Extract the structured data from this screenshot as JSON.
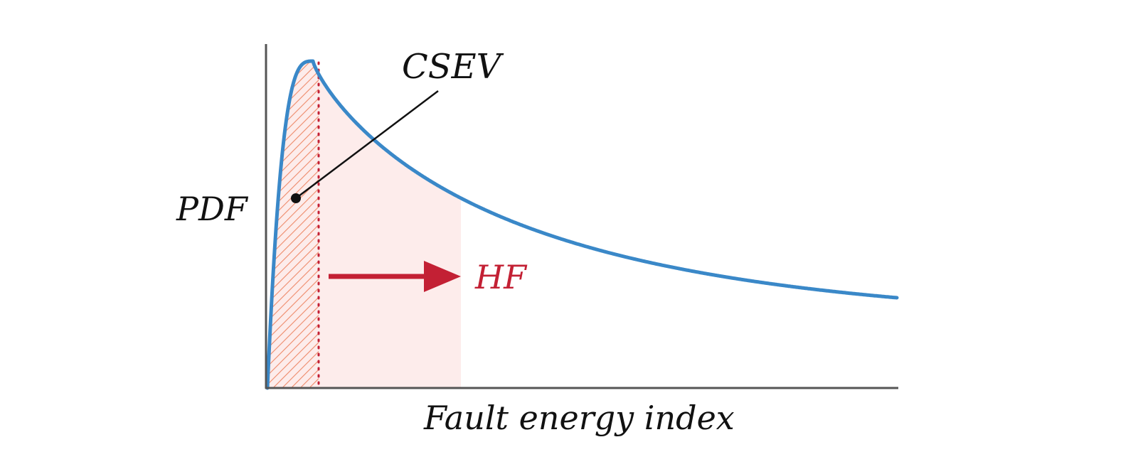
{
  "diagram": {
    "y_axis_label": "PDF",
    "x_axis_label": "Fault energy index",
    "annotation_label": "CSEV",
    "arrow_label": "HF",
    "colors": {
      "curve": "#3a88c8",
      "axis": "#555555",
      "accent_red": "#c32034",
      "hatch": "#ee8a6a",
      "shade": "#fdeceb",
      "text": "#111111"
    }
  }
}
